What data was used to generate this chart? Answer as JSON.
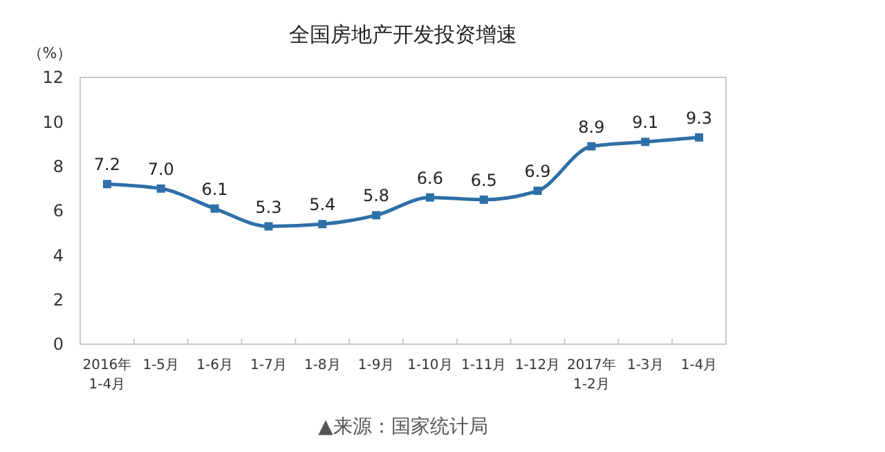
{
  "chart_data": {
    "type": "line",
    "title": "全国房地产开发投资增速",
    "ylabel": "（%）",
    "categories": [
      "2016年\n1-4月",
      "1-5月",
      "1-6月",
      "1-7月",
      "1-8月",
      "1-9月",
      "1-10月",
      "1-11月",
      "1-12月",
      "2017年\n1-2月",
      "1-3月",
      "1-4月"
    ],
    "series": [
      {
        "color": "#2e6fa7",
        "values": [
          7.2,
          7.0,
          6.1,
          5.3,
          5.4,
          5.8,
          6.6,
          6.5,
          6.9,
          8.9,
          9.1,
          9.3
        ],
        "value_labels": [
          "7.2",
          "7.0",
          "6.1",
          "5.3",
          "5.4",
          "5.8",
          "6.6",
          "6.5",
          "6.9",
          "8.9",
          "9.1",
          "9.3"
        ]
      }
    ],
    "ylim": [
      0,
      12
    ],
    "yticks": [
      0,
      2,
      4,
      6,
      8,
      10,
      12
    ],
    "marker": "square",
    "grid": false,
    "annotations": [
      "▲来源：国家统计局"
    ]
  }
}
